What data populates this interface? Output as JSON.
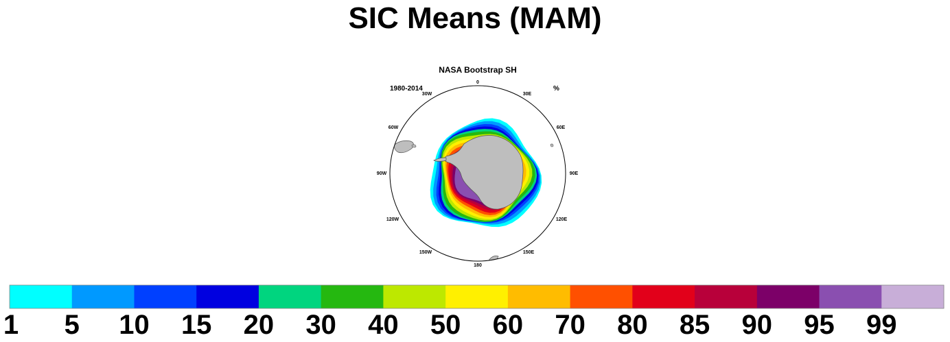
{
  "title": "SIC Means (MAM)",
  "panel": {
    "title": "NASA Bootstrap SH",
    "period": "1980-2014",
    "units": "%"
  },
  "longitude_labels": [
    "0",
    "30E",
    "60E",
    "90E",
    "120E",
    "150E",
    "180",
    "150W",
    "120W",
    "90W",
    "60W",
    "30W"
  ],
  "colorbar": {
    "colors": [
      "#00ffff",
      "#0099ff",
      "#0040ff",
      "#0000e0",
      "#00d57f",
      "#25b810",
      "#bde800",
      "#fff000",
      "#ffbc00",
      "#ff5000",
      "#e2001a",
      "#b8003a",
      "#7c0068",
      "#8a4fb0",
      "#c8aed8"
    ],
    "labels": [
      "1",
      "5",
      "10",
      "15",
      "20",
      "30",
      "40",
      "50",
      "60",
      "70",
      "80",
      "85",
      "90",
      "95",
      "99"
    ]
  },
  "colors": {
    "land": "#bebebe",
    "ocean": "#ffffff"
  }
}
